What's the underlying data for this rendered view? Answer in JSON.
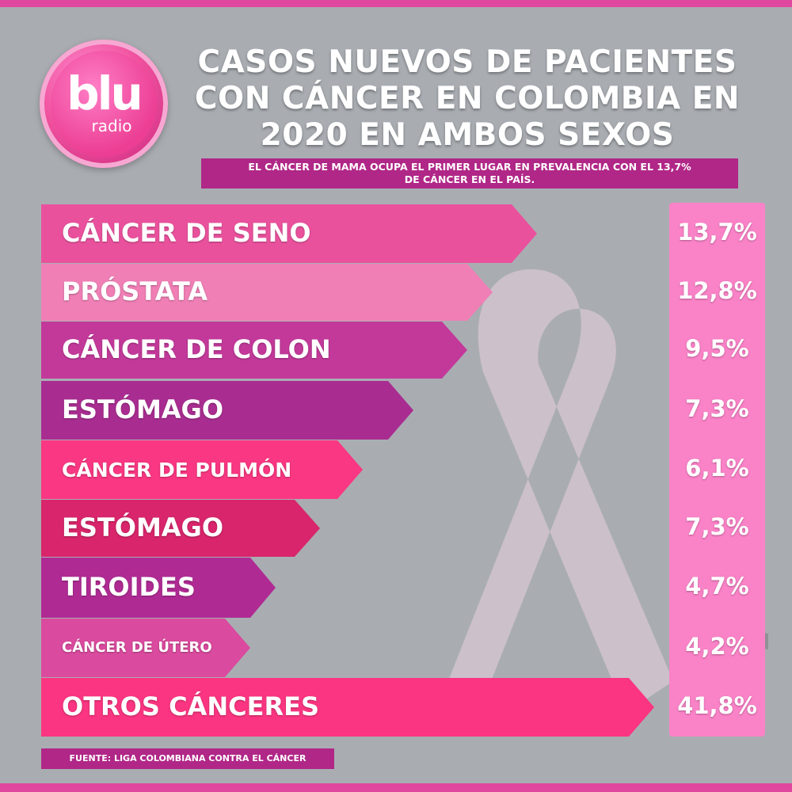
{
  "logo": {
    "word": "blu",
    "sub": "radio"
  },
  "header": {
    "title_lines": [
      "CASOS NUEVOS DE PACIENTES",
      "CON CÁNCER EN COLOMBIA EN",
      "2020 EN AMBOS SEXOS"
    ],
    "subtitle_lines": [
      "EL CÁNCER DE MAMA OCUPA EL PRIMER LUGAR EN PREVALENCIA CON EL 13,7%",
      "DE CÁNCER EN EL PAÍS."
    ]
  },
  "colors": {
    "background": "#a9adb2",
    "frame": "#e0479e",
    "value_panel": "#fa82c7",
    "source_box": "#b02787"
  },
  "chart_data": {
    "type": "bar",
    "categories": [
      "CÁNCER DE SENO",
      "PRÓSTATA",
      "CÁNCER DE COLON",
      "ESTÓMAGO",
      "CÁNCER DE PULMÓN",
      "ESTÓMAGO",
      "TIROIDES",
      "CÁNCER DE ÚTERO",
      "OTROS CÁNCERES"
    ],
    "values": [
      13.7,
      12.8,
      9.5,
      7.3,
      6.1,
      7.3,
      4.7,
      4.2,
      41.8
    ],
    "value_labels": [
      "13,7%",
      "12,8%",
      "9,5%",
      "7,3%",
      "6,1%",
      "7,3%",
      "4,7%",
      "4,2%",
      "41,8%"
    ],
    "bar_colors": [
      "#ea519d",
      "#f07fb6",
      "#c3399a",
      "#a92d91",
      "#fa3782",
      "#d9256b",
      "#b02a94",
      "#da4a9e",
      "#fb3581"
    ],
    "orientation": "horizontal",
    "legend": "none",
    "grid": false
  },
  "source": "FUENTE: LIGA COLOMBIANA CONTRA EL CÁNCER"
}
